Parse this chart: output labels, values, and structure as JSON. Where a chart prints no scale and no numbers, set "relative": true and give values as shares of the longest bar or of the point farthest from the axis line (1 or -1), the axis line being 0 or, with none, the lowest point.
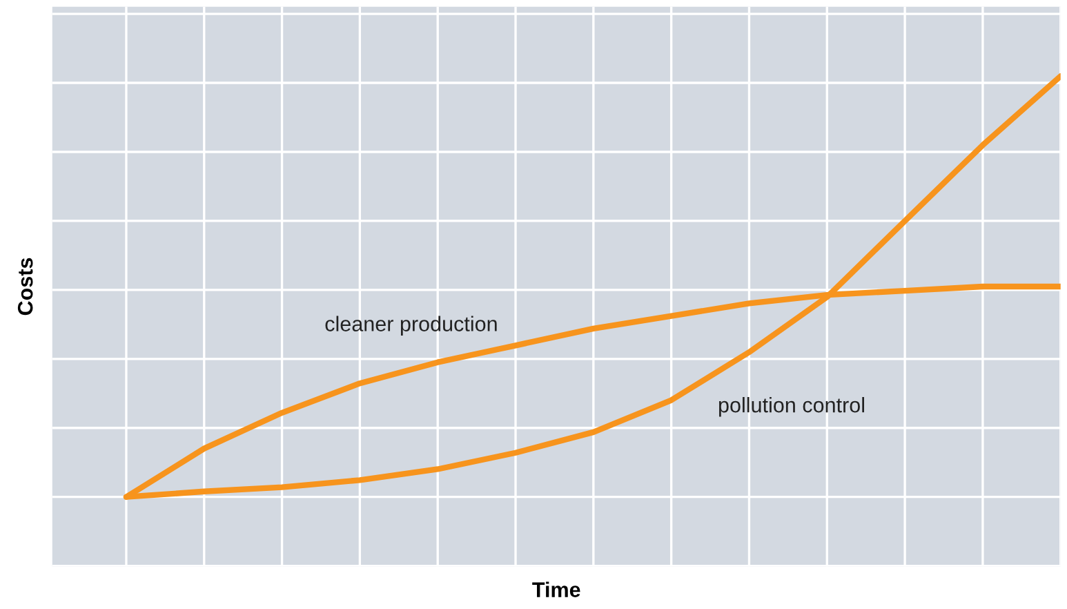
{
  "chart_data": {
    "type": "line",
    "relative": true,
    "xlabel": "Time",
    "ylabel": "Costs",
    "grid": true,
    "legend": false,
    "marker": "none",
    "line_style": "solid",
    "categories": [
      null,
      null,
      null,
      null,
      null,
      null,
      null,
      null,
      null,
      null,
      null,
      null,
      null
    ],
    "series": [
      {
        "color": "#f7941d",
        "values": [
          0,
          0.115,
          0.2,
          0.27,
          0.32,
          0.36,
          0.4,
          0.43,
          0.46,
          0.48,
          0.49,
          0.5,
          0.5
        ]
      },
      {
        "color": "#f7941d",
        "values": [
          0,
          0.013,
          0.023,
          0.04,
          0.066,
          0.105,
          0.154,
          0.23,
          0.344,
          0.475,
          0.656,
          0.836,
          1
        ]
      }
    ],
    "annotations": [
      "cleaner production",
      "pollution control"
    ]
  }
}
